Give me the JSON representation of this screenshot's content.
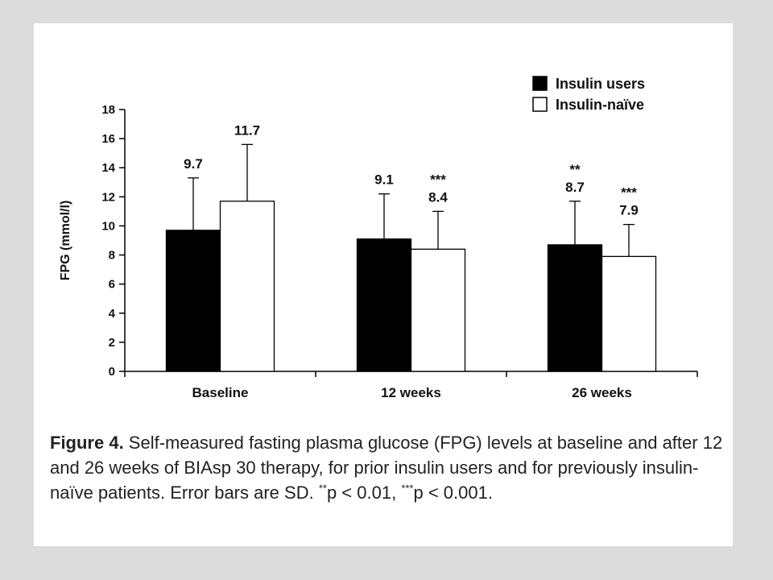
{
  "chart_data": {
    "type": "bar",
    "title": "",
    "xlabel": "",
    "ylabel": "FPG (mmol/l)",
    "ylim": [
      0,
      18
    ],
    "yticks": [
      0,
      2,
      4,
      6,
      8,
      10,
      12,
      14,
      16,
      18
    ],
    "categories": [
      "Baseline",
      "12 weeks",
      "26 weeks"
    ],
    "legend_position": "top-right",
    "grid": false,
    "series": [
      {
        "name": "Insulin users",
        "fill": "#000000",
        "values": [
          9.7,
          9.1,
          8.7
        ],
        "sd": [
          3.6,
          3.1,
          3.0
        ],
        "labels": [
          "9.7",
          "9.1",
          "8.7"
        ],
        "significance": [
          "",
          "",
          "**"
        ]
      },
      {
        "name": "Insulin-naïve",
        "fill": "#ffffff",
        "values": [
          11.7,
          8.4,
          7.9
        ],
        "sd": [
          3.9,
          2.6,
          2.2
        ],
        "labels": [
          "11.7",
          "8.4",
          "7.9"
        ],
        "significance": [
          "",
          "***",
          "***"
        ]
      }
    ]
  },
  "caption": {
    "label": "Figure 4.",
    "text_1": " Self-measured fasting plasma glucose (FPG) levels at baseline and after 12 and 26 weeks of BIAsp 30 therapy, for prior insulin users and for previously insulin-naïve patients. Error bars are SD. ",
    "sig_1": "**",
    "text_2": "p < 0.01, ",
    "sig_2": "***",
    "text_3": "p < 0.001."
  }
}
